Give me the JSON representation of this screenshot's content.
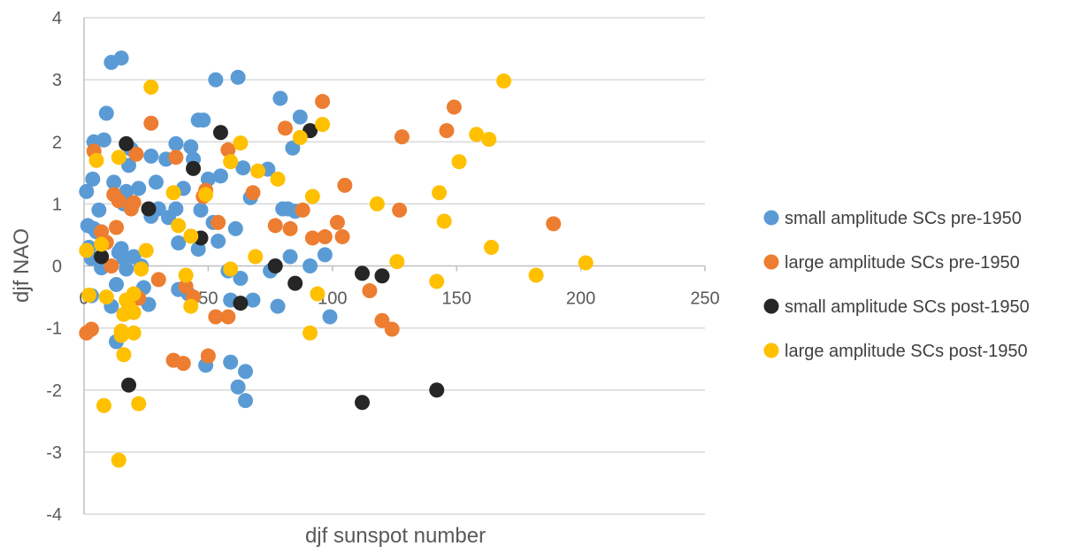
{
  "chart_data": {
    "type": "scatter",
    "title": "",
    "xlabel": "djf sunspot number",
    "ylabel": "djf NAO",
    "xlim": [
      0,
      250
    ],
    "ylim": [
      -4,
      4
    ],
    "x_ticks": [
      "0",
      "50",
      "100",
      "150",
      "200",
      "250"
    ],
    "y_ticks": [
      "-4",
      "-3",
      "-2",
      "-1",
      "0",
      "1",
      "2",
      "3",
      "4"
    ],
    "grid": "horizontal",
    "legend_position": "right",
    "series": [
      {
        "name": "small amplitude SCs pre-1950",
        "color": "#5b9bd5",
        "points": [
          [
            1,
            1.2
          ],
          [
            1.5,
            0.65
          ],
          [
            2,
            0.3
          ],
          [
            3,
            -0.48
          ],
          [
            3,
            0.12
          ],
          [
            3.5,
            1.4
          ],
          [
            4,
            0.6
          ],
          [
            4,
            2.0
          ],
          [
            5,
            0.55
          ],
          [
            6,
            0.9
          ],
          [
            7,
            -0.03
          ],
          [
            8,
            2.03
          ],
          [
            9,
            2.46
          ],
          [
            11,
            3.28
          ],
          [
            11,
            -0.65
          ],
          [
            12,
            1.35
          ],
          [
            13,
            -1.22
          ],
          [
            13,
            -0.3
          ],
          [
            14,
            0.22
          ],
          [
            15,
            0.28
          ],
          [
            15,
            3.35
          ],
          [
            16,
            1.0
          ],
          [
            16,
            0.12
          ],
          [
            17,
            -0.05
          ],
          [
            17,
            1.2
          ],
          [
            18,
            1.62
          ],
          [
            19,
            1.88
          ],
          [
            20,
            0.15
          ],
          [
            22,
            1.25
          ],
          [
            23,
            0.0
          ],
          [
            24,
            -0.35
          ],
          [
            26,
            -0.62
          ],
          [
            27,
            1.77
          ],
          [
            27,
            0.8
          ],
          [
            29,
            1.35
          ],
          [
            30,
            0.92
          ],
          [
            33,
            1.72
          ],
          [
            34,
            0.78
          ],
          [
            37,
            1.97
          ],
          [
            37,
            0.92
          ],
          [
            38,
            -0.38
          ],
          [
            38,
            0.37
          ],
          [
            40,
            1.25
          ],
          [
            42,
            -0.45
          ],
          [
            43,
            1.92
          ],
          [
            44,
            1.72
          ],
          [
            46,
            0.27
          ],
          [
            46,
            2.35
          ],
          [
            47,
            0.9
          ],
          [
            48,
            2.35
          ],
          [
            49,
            -1.6
          ],
          [
            50,
            1.4
          ],
          [
            52,
            0.7
          ],
          [
            53,
            3.0
          ],
          [
            54,
            0.4
          ],
          [
            55,
            1.45
          ],
          [
            58,
            -0.08
          ],
          [
            59,
            -0.55
          ],
          [
            59,
            -1.55
          ],
          [
            61,
            0.6
          ],
          [
            62,
            3.04
          ],
          [
            62,
            -1.95
          ],
          [
            63,
            -0.2
          ],
          [
            64,
            1.58
          ],
          [
            65,
            -2.17
          ],
          [
            65,
            -1.7
          ],
          [
            67,
            1.1
          ],
          [
            68,
            -0.55
          ],
          [
            74,
            1.56
          ],
          [
            75,
            -0.08
          ],
          [
            78,
            -0.65
          ],
          [
            79,
            2.7
          ],
          [
            80,
            0.92
          ],
          [
            82,
            0.92
          ],
          [
            83,
            0.15
          ],
          [
            84,
            1.9
          ],
          [
            85,
            0.88
          ],
          [
            87,
            2.4
          ],
          [
            91,
            0.0
          ],
          [
            97,
            0.18
          ],
          [
            99,
            -0.82
          ]
        ]
      },
      {
        "name": "large amplitude SCs pre-1950",
        "color": "#ed7d31",
        "points": [
          [
            1,
            -1.08
          ],
          [
            3,
            -1.02
          ],
          [
            4,
            1.85
          ],
          [
            7,
            0.55
          ],
          [
            9,
            0.38
          ],
          [
            11,
            0.0
          ],
          [
            12,
            1.15
          ],
          [
            13,
            0.62
          ],
          [
            14,
            1.05
          ],
          [
            19,
            0.92
          ],
          [
            20,
            1.02
          ],
          [
            21,
            1.8
          ],
          [
            22,
            -0.52
          ],
          [
            27,
            2.3
          ],
          [
            30,
            -0.22
          ],
          [
            36,
            -1.52
          ],
          [
            37,
            1.75
          ],
          [
            40,
            -1.57
          ],
          [
            41,
            -0.33
          ],
          [
            44,
            -0.5
          ],
          [
            48,
            1.12
          ],
          [
            49,
            1.22
          ],
          [
            50,
            -1.45
          ],
          [
            53,
            -0.82
          ],
          [
            54,
            0.7
          ],
          [
            58,
            -0.82
          ],
          [
            58,
            1.87
          ],
          [
            68,
            1.18
          ],
          [
            77,
            0.65
          ],
          [
            81,
            2.22
          ],
          [
            83,
            0.6
          ],
          [
            88,
            0.9
          ],
          [
            92,
            0.45
          ],
          [
            96,
            2.65
          ],
          [
            97,
            0.47
          ],
          [
            102,
            0.7
          ],
          [
            104,
            0.47
          ],
          [
            105,
            1.3
          ],
          [
            115,
            -0.4
          ],
          [
            120,
            -0.88
          ],
          [
            124,
            -1.02
          ],
          [
            127,
            0.9
          ],
          [
            128,
            2.08
          ],
          [
            146,
            2.18
          ],
          [
            149,
            2.56
          ],
          [
            189,
            0.68
          ]
        ]
      },
      {
        "name": "small amplitude SCs post-1950",
        "color": "#262626",
        "points": [
          [
            7,
            0.15
          ],
          [
            17,
            1.97
          ],
          [
            18,
            -1.92
          ],
          [
            26,
            0.92
          ],
          [
            44,
            1.57
          ],
          [
            47,
            0.45
          ],
          [
            55,
            2.15
          ],
          [
            63,
            -0.6
          ],
          [
            77,
            0.0
          ],
          [
            85,
            -0.28
          ],
          [
            91,
            2.18
          ],
          [
            112,
            -2.2
          ],
          [
            112,
            -0.12
          ],
          [
            120,
            -0.16
          ],
          [
            142,
            -2.0
          ]
        ]
      },
      {
        "name": "large amplitude SCs post-1950",
        "color": "#ffc000",
        "points": [
          [
            1,
            0.25
          ],
          [
            2,
            -0.47
          ],
          [
            5,
            1.7
          ],
          [
            7,
            0.35
          ],
          [
            8,
            -2.25
          ],
          [
            9,
            -0.5
          ],
          [
            14,
            1.75
          ],
          [
            14,
            -3.13
          ],
          [
            15,
            -1.05
          ],
          [
            15,
            -1.12
          ],
          [
            16,
            -1.43
          ],
          [
            16,
            -0.78
          ],
          [
            17,
            -0.55
          ],
          [
            18,
            -0.65
          ],
          [
            20,
            -0.45
          ],
          [
            20,
            -1.08
          ],
          [
            20,
            -0.75
          ],
          [
            22,
            -2.22
          ],
          [
            23,
            -0.05
          ],
          [
            25,
            0.25
          ],
          [
            27,
            2.88
          ],
          [
            36,
            1.18
          ],
          [
            38,
            0.65
          ],
          [
            41,
            -0.15
          ],
          [
            43,
            -0.65
          ],
          [
            43,
            0.48
          ],
          [
            49,
            1.15
          ],
          [
            59,
            -0.05
          ],
          [
            59,
            1.68
          ],
          [
            63,
            1.98
          ],
          [
            69,
            0.15
          ],
          [
            70,
            1.53
          ],
          [
            78,
            1.4
          ],
          [
            87,
            2.07
          ],
          [
            91,
            -1.08
          ],
          [
            92,
            1.12
          ],
          [
            94,
            -0.45
          ],
          [
            96,
            2.28
          ],
          [
            118,
            1.0
          ],
          [
            126,
            0.07
          ],
          [
            142,
            -0.25
          ],
          [
            143,
            1.18
          ],
          [
            145,
            0.72
          ],
          [
            151,
            1.68
          ],
          [
            158,
            2.12
          ],
          [
            163,
            2.04
          ],
          [
            164,
            0.3
          ],
          [
            169,
            2.98
          ],
          [
            182,
            -0.15
          ],
          [
            202,
            0.05
          ]
        ]
      }
    ]
  }
}
